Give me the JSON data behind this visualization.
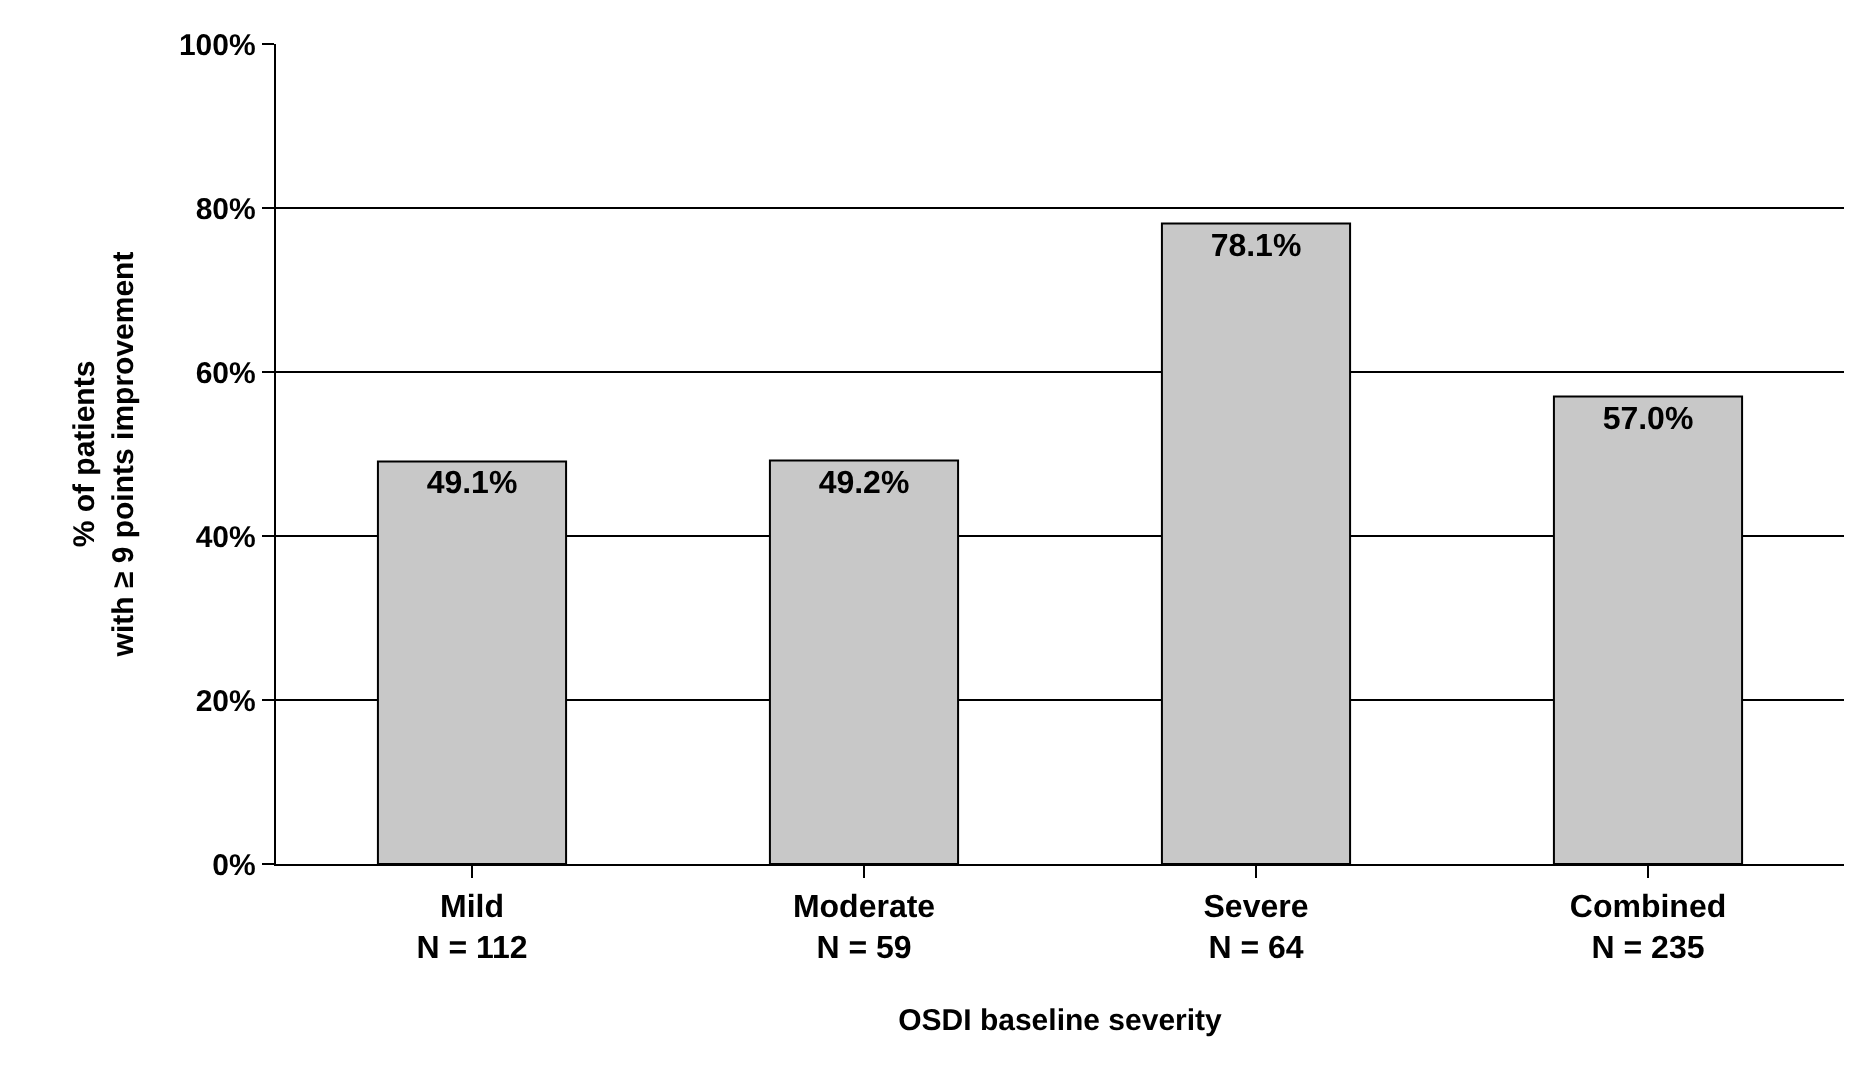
{
  "chart_data": {
    "type": "bar",
    "xlabel": "OSDI baseline severity",
    "ylabel": "% of patients\nwith ≥ 9 points improvement",
    "categories": [
      "Mild\nN = 112",
      "Moderate\nN = 59",
      "Severe\nN = 64",
      "Combined\nN = 235"
    ],
    "values": [
      49.1,
      49.2,
      78.1,
      57.0
    ],
    "value_labels": [
      "49.1%",
      "49.2%",
      "78.1%",
      "57.0%"
    ],
    "color": "#c8c8c8",
    "ylim": [
      0,
      100
    ],
    "yticks": [
      {
        "value": 0,
        "label": "0%"
      },
      {
        "value": 20,
        "label": "20%"
      },
      {
        "value": 40,
        "label": "40%"
      },
      {
        "value": 60,
        "label": "60%"
      },
      {
        "value": 80,
        "label": "80%"
      },
      {
        "value": 100,
        "label": "100%"
      }
    ],
    "grid": "y",
    "legend": false
  }
}
